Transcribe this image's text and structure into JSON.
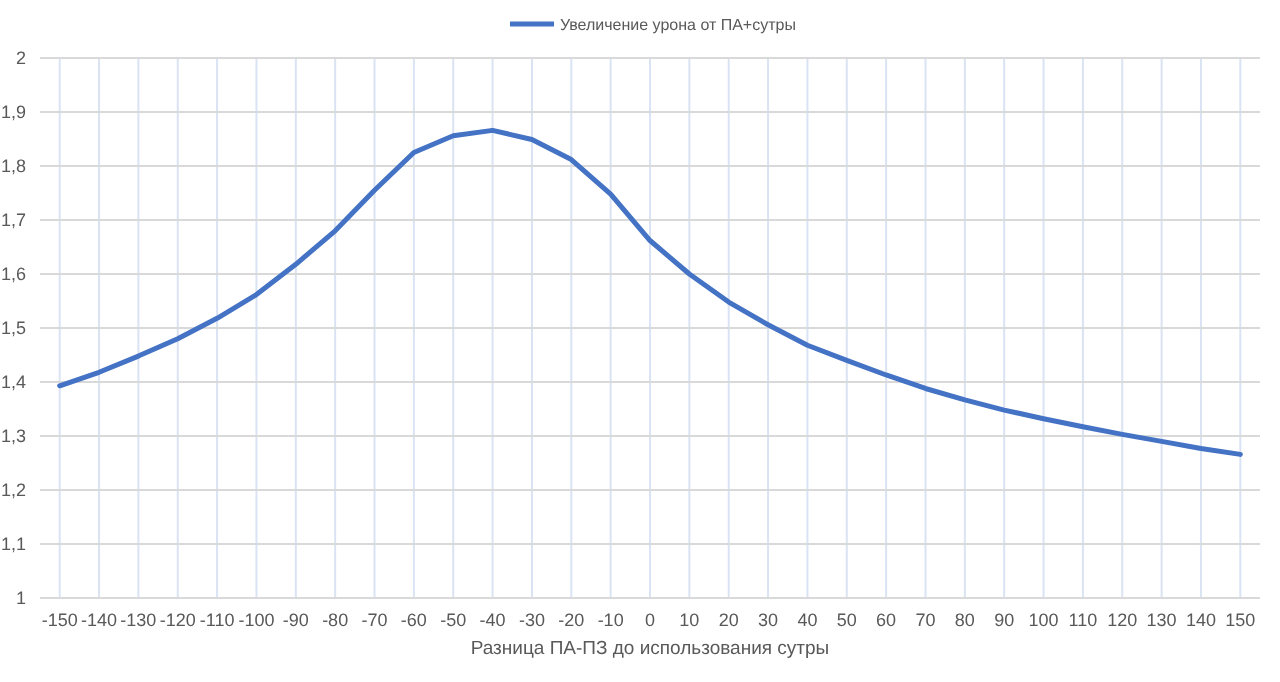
{
  "chart_data": {
    "type": "line",
    "xlabel": "Разница ПА-ПЗ до использования сутры",
    "categories": [
      "-150",
      "-140",
      "-130",
      "-120",
      "-110",
      "-100",
      "-90",
      "-80",
      "-70",
      "-60",
      "-50",
      "-40",
      "-30",
      "-20",
      "-10",
      "0",
      "10",
      "20",
      "30",
      "40",
      "50",
      "60",
      "70",
      "80",
      "90",
      "100",
      "110",
      "120",
      "130",
      "140",
      "150"
    ],
    "series": [
      {
        "name": "Увеличение урона от ПА+сутры",
        "color": "#4472c4",
        "values": [
          1.393,
          1.418,
          1.448,
          1.48,
          1.518,
          1.562,
          1.618,
          1.68,
          1.755,
          1.825,
          1.856,
          1.866,
          1.849,
          1.812,
          1.748,
          1.662,
          1.6,
          1.548,
          1.506,
          1.468,
          1.44,
          1.413,
          1.388,
          1.367,
          1.348,
          1.332,
          1.317,
          1.303,
          1.29,
          1.277,
          1.266
        ]
      }
    ],
    "ylim": [
      1,
      2
    ],
    "yticks": [
      1,
      {
        "value": 1.1,
        "label": "1,1"
      },
      {
        "value": 1.2,
        "label": "1,2"
      },
      {
        "value": 1.3,
        "label": "1,3"
      },
      {
        "value": 1.4,
        "label": "1,4"
      },
      {
        "value": 1.5,
        "label": "1,5"
      },
      {
        "value": 1.6,
        "label": "1,6"
      },
      {
        "value": 1.7,
        "label": "1,7"
      },
      {
        "value": 1.8,
        "label": "1,8"
      },
      {
        "value": 1.9,
        "label": "1,9"
      },
      2
    ],
    "grid": true,
    "legend": "top",
    "marker": "none",
    "line_style": "solid"
  }
}
